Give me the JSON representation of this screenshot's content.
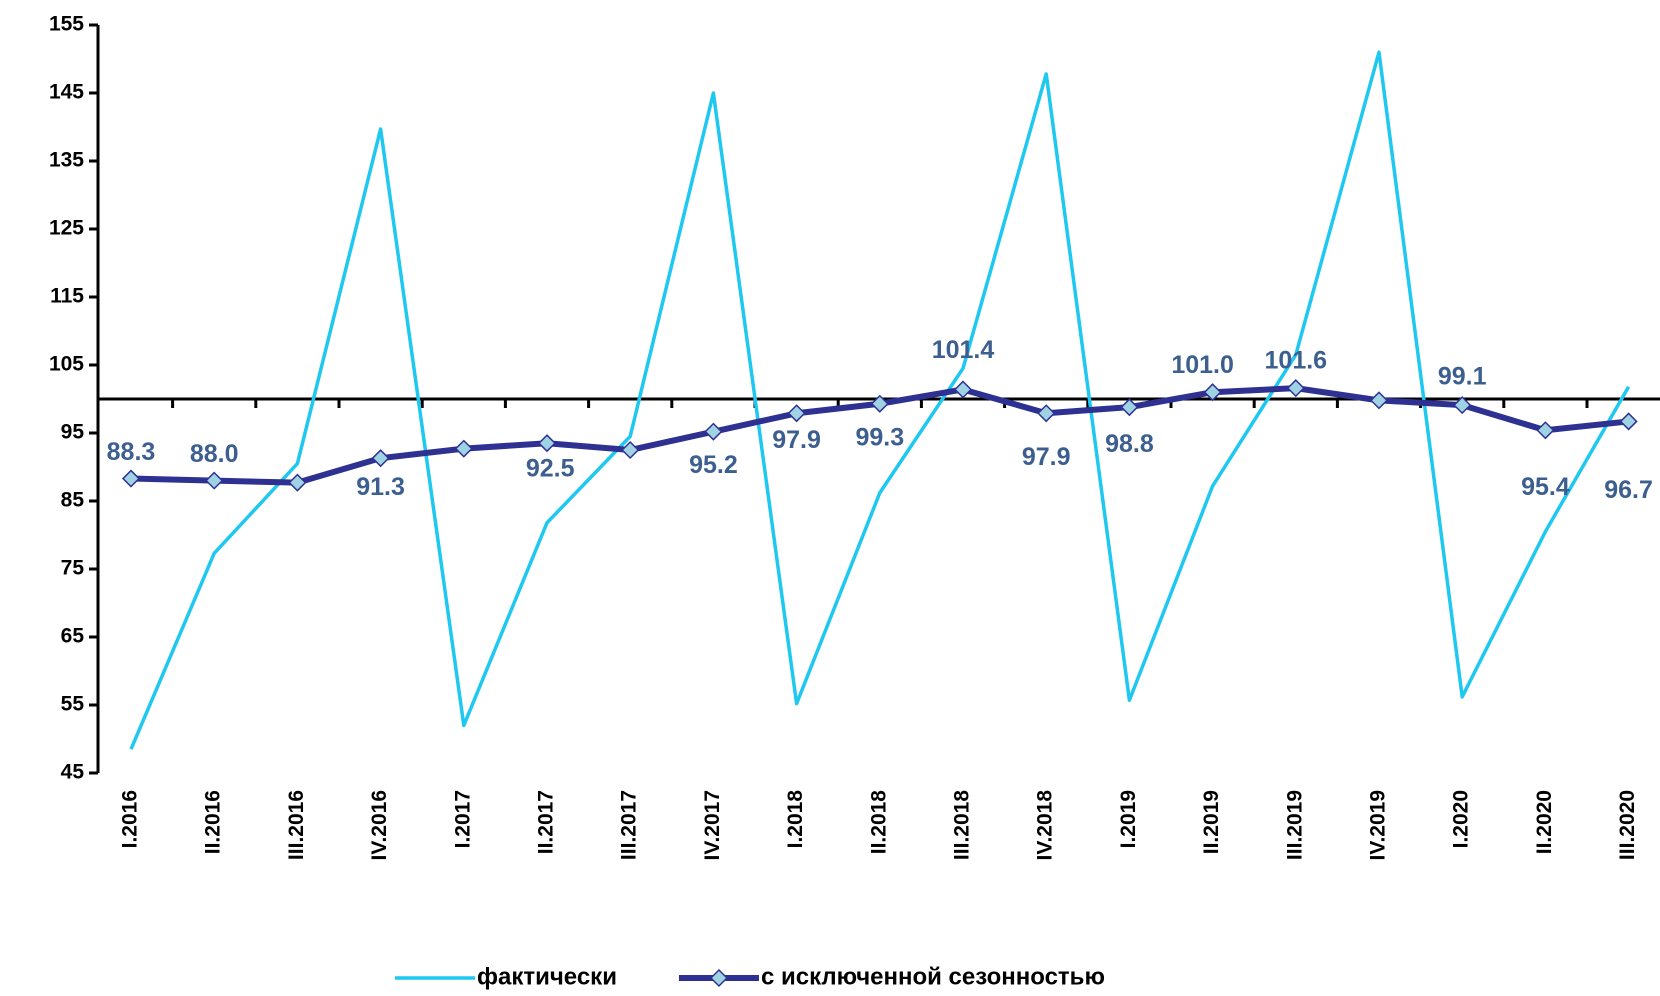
{
  "chart_data": {
    "type": "line",
    "categories": [
      "I.2016",
      "II.2016",
      "III.2016",
      "IV.2016",
      "I.2017",
      "II.2017",
      "III.2017",
      "IV.2017",
      "I.2018",
      "II.2018",
      "III.2018",
      "IV.2018",
      "I.2019",
      "II.2019",
      "III.2019",
      "IV.2019",
      "I.2020",
      "II.2020",
      "III.2020"
    ],
    "series": [
      {
        "name": "фактически",
        "color": "#1ec8f0",
        "marker": false,
        "values": [
          48.5,
          77.3,
          90.5,
          139.7,
          52.0,
          81.8,
          94.5,
          145.0,
          55.2,
          86.2,
          104.5,
          147.8,
          55.7,
          87.2,
          106.5,
          151.0,
          56.2,
          80.5,
          101.8
        ]
      },
      {
        "name": "с исключенной сезонностью",
        "color": "#2e3192",
        "marker": true,
        "marker_color": "#9fd3e3",
        "values": [
          88.3,
          88.0,
          87.7,
          91.3,
          92.7,
          93.5,
          92.5,
          95.2,
          97.9,
          99.3,
          101.4,
          97.9,
          98.8,
          101.0,
          101.6,
          99.8,
          99.1,
          95.4,
          96.7
        ],
        "value_labels": [
          "88.3",
          "88.0",
          null,
          "91.3",
          null,
          null,
          "92.5",
          "95.2",
          "97.9",
          "99.3",
          "101.4",
          "97.9",
          "98.8",
          "101.0",
          "101.6",
          null,
          "99.1",
          "95.4",
          "96.7"
        ]
      }
    ],
    "ylim": [
      45,
      155
    ],
    "yticks": [
      45,
      55,
      65,
      75,
      85,
      95,
      105,
      115,
      125,
      135,
      145,
      155
    ],
    "reference_line": 100,
    "grid": false,
    "legend": "bottom"
  }
}
